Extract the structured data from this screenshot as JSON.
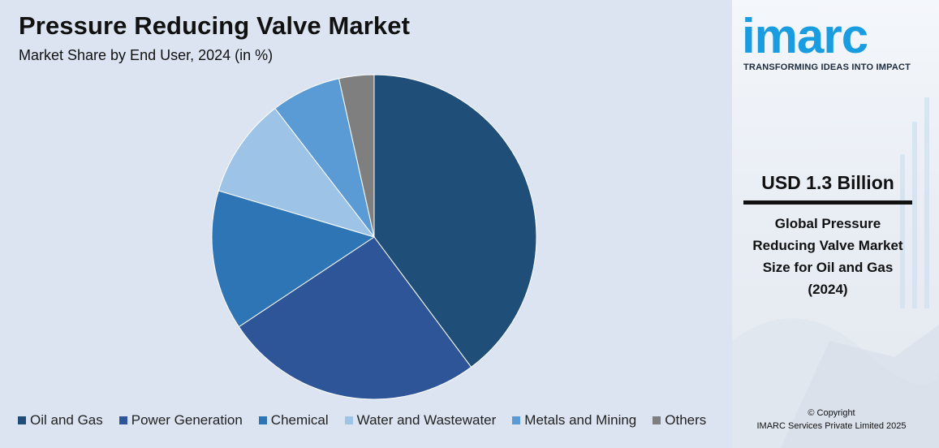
{
  "chart_data": {
    "type": "pie",
    "title": "Pressure Reducing Valve Market",
    "subtitle": "Market Share by End User, 2024 (in %)",
    "categories": [
      "Oil and Gas",
      "Power Generation",
      "Chemical",
      "Water and Wastewater",
      "Metals and Mining",
      "Others"
    ],
    "values": [
      40,
      26,
      14,
      10,
      7,
      3.5
    ],
    "colors": [
      "#1f4e79",
      "#2e5597",
      "#2e75b6",
      "#9dc3e6",
      "#5b9bd5",
      "#7f7f7f"
    ],
    "legend_position": "bottom"
  },
  "side_panel": {
    "logo_text": "imarc",
    "tagline": "TRANSFORMING IDEAS INTO IMPACT",
    "value_amount": "USD 1.3 Billion",
    "value_description": "Global Pressure Reducing Valve Market Size for Oil and Gas (2024)",
    "copyright_line1": "© Copyright",
    "copyright_line2": "IMARC Services Private Limited 2025"
  }
}
